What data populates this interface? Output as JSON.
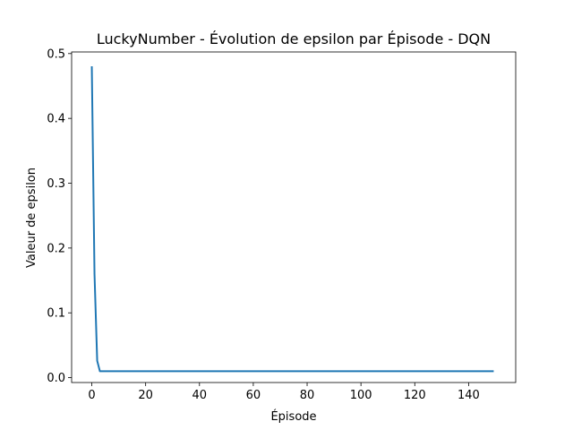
{
  "chart_data": {
    "type": "line",
    "title": "LuckyNumber - Évolution de epsilon par Épisode - DQN",
    "xlabel": "Épisode",
    "ylabel": "Valeur de epsilon",
    "xlim": [
      -7.5,
      157.5
    ],
    "ylim": [
      -0.0075,
      0.5025
    ],
    "xticks": [
      0,
      20,
      40,
      60,
      80,
      100,
      120,
      140
    ],
    "yticks": [
      0.0,
      0.1,
      0.2,
      0.3,
      0.4,
      0.5
    ],
    "ytick_labels": [
      "0.0",
      "0.1",
      "0.2",
      "0.3",
      "0.4",
      "0.5"
    ],
    "grid": false,
    "series": [
      {
        "color": "#1f77b4",
        "points": [
          [
            0,
            0.479
          ],
          [
            1,
            0.16
          ],
          [
            2,
            0.026
          ],
          [
            3,
            0.01
          ],
          [
            149,
            0.01
          ]
        ]
      }
    ]
  }
}
